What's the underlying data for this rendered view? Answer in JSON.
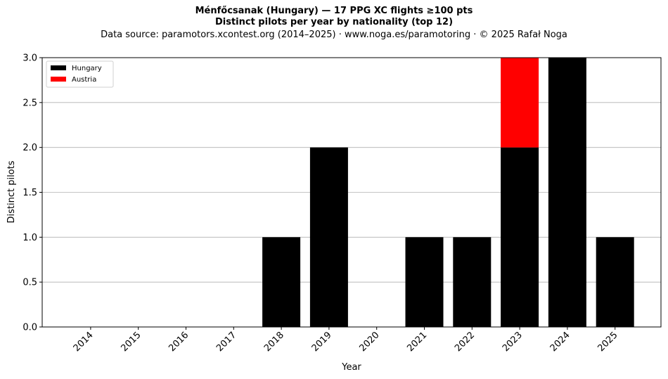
{
  "title": "Ménfőcsanak (Hungary)  —  17 PPG XC flights ≥100 pts",
  "title2": "Distinct pilots per year by nationality (top 12)",
  "subtitle": "Data source: paramotors.xcontest.org (2014–2025)  ·  www.noga.es/paramotoring  ·  © 2025 Rafał Noga",
  "chart_data": {
    "type": "bar",
    "stacked": true,
    "categories": [
      "2014",
      "2015",
      "2016",
      "2017",
      "2018",
      "2019",
      "2020",
      "2021",
      "2022",
      "2023",
      "2024",
      "2025"
    ],
    "series": [
      {
        "name": "Hungary",
        "color": "#000000",
        "values": [
          0,
          0,
          0,
          0,
          1,
          2,
          0,
          1,
          1,
          2,
          3,
          1
        ]
      },
      {
        "name": "Austria",
        "color": "#ff0000",
        "values": [
          0,
          0,
          0,
          0,
          0,
          0,
          0,
          0,
          0,
          1,
          0,
          0
        ]
      }
    ],
    "xlabel": "Year",
    "ylabel": "Distinct pilots",
    "ylim": [
      0,
      3.0
    ],
    "yticks": [
      "0.0",
      "0.5",
      "1.0",
      "1.5",
      "2.0",
      "2.5",
      "3.0"
    ],
    "grid": "y",
    "legend_position": "top-left"
  }
}
